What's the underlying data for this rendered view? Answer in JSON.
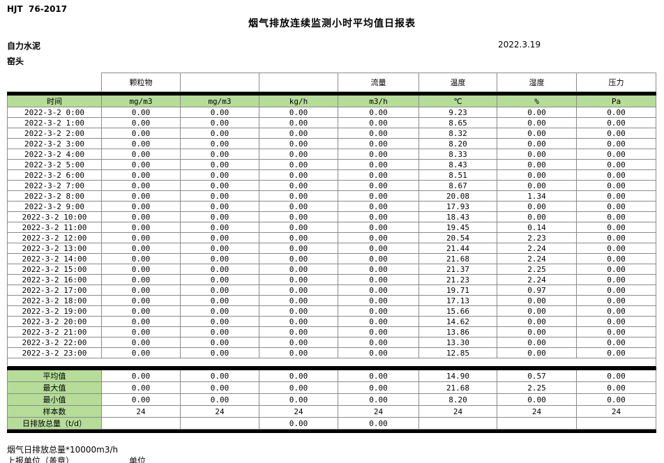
{
  "meta": {
    "standard_code": "HJT  76-2017",
    "title": "烟气排放连续监测小时平均值日报表",
    "company": "自力水泥",
    "location": "窑头",
    "report_date": "2022.3.19"
  },
  "colors": {
    "header_green": "#b5dd98",
    "bar_black": "#000000",
    "border_gray": "#8a8a8a"
  },
  "table": {
    "group_headers": [
      "",
      "颗粒物",
      "",
      "",
      "流量",
      "温度",
      "湿度",
      "压力"
    ],
    "unit_headers": [
      "时间",
      "mg/m3",
      "mg/m3",
      "kg/h",
      "m3/h",
      "℃",
      "%",
      "Pa"
    ],
    "rows": [
      {
        "time": "2022-3-2 0:00",
        "values": [
          "0.00",
          "0.00",
          "0.00",
          "0.00",
          "9.23",
          "0.00",
          "0.00"
        ]
      },
      {
        "time": "2022-3-2 1:00",
        "values": [
          "0.00",
          "0.00",
          "0.00",
          "0.00",
          "8.65",
          "0.00",
          "0.00"
        ]
      },
      {
        "time": "2022-3-2 2:00",
        "values": [
          "0.00",
          "0.00",
          "0.00",
          "0.00",
          "8.32",
          "0.00",
          "0.00"
        ]
      },
      {
        "time": "2022-3-2 3:00",
        "values": [
          "0.00",
          "0.00",
          "0.00",
          "0.00",
          "8.20",
          "0.00",
          "0.00"
        ]
      },
      {
        "time": "2022-3-2 4:00",
        "values": [
          "0.00",
          "0.00",
          "0.00",
          "0.00",
          "8.33",
          "0.00",
          "0.00"
        ]
      },
      {
        "time": "2022-3-2 5:00",
        "values": [
          "0.00",
          "0.00",
          "0.00",
          "0.00",
          "8.43",
          "0.00",
          "0.00"
        ]
      },
      {
        "time": "2022-3-2 6:00",
        "values": [
          "0.00",
          "0.00",
          "0.00",
          "0.00",
          "8.51",
          "0.00",
          "0.00"
        ]
      },
      {
        "time": "2022-3-2 7:00",
        "values": [
          "0.00",
          "0.00",
          "0.00",
          "0.00",
          "8.67",
          "0.00",
          "0.00"
        ]
      },
      {
        "time": "2022-3-2 8:00",
        "values": [
          "0.00",
          "0.00",
          "0.00",
          "0.00",
          "20.08",
          "1.34",
          "0.00"
        ]
      },
      {
        "time": "2022-3-2 9:00",
        "values": [
          "0.00",
          "0.00",
          "0.00",
          "0.00",
          "17.93",
          "0.00",
          "0.00"
        ]
      },
      {
        "time": "2022-3-2 10:00",
        "values": [
          "0.00",
          "0.00",
          "0.00",
          "0.00",
          "18.43",
          "0.00",
          "0.00"
        ]
      },
      {
        "time": "2022-3-2 11:00",
        "values": [
          "0.00",
          "0.00",
          "0.00",
          "0.00",
          "19.45",
          "0.14",
          "0.00"
        ]
      },
      {
        "time": "2022-3-2 12:00",
        "values": [
          "0.00",
          "0.00",
          "0.00",
          "0.00",
          "20.54",
          "2.23",
          "0.00"
        ]
      },
      {
        "time": "2022-3-2 13:00",
        "values": [
          "0.00",
          "0.00",
          "0.00",
          "0.00",
          "21.44",
          "2.24",
          "0.00"
        ]
      },
      {
        "time": "2022-3-2 14:00",
        "values": [
          "0.00",
          "0.00",
          "0.00",
          "0.00",
          "21.68",
          "2.24",
          "0.00"
        ]
      },
      {
        "time": "2022-3-2 15:00",
        "values": [
          "0.00",
          "0.00",
          "0.00",
          "0.00",
          "21.37",
          "2.25",
          "0.00"
        ]
      },
      {
        "time": "2022-3-2 16:00",
        "values": [
          "0.00",
          "0.00",
          "0.00",
          "0.00",
          "21.23",
          "2.24",
          "0.00"
        ]
      },
      {
        "time": "2022-3-2 17:00",
        "values": [
          "0.00",
          "0.00",
          "0.00",
          "0.00",
          "19.71",
          "0.97",
          "0.00"
        ]
      },
      {
        "time": "2022-3-2 18:00",
        "values": [
          "0.00",
          "0.00",
          "0.00",
          "0.00",
          "17.13",
          "0.00",
          "0.00"
        ]
      },
      {
        "time": "2022-3-2 19:00",
        "values": [
          "0.00",
          "0.00",
          "0.00",
          "0.00",
          "15.66",
          "0.00",
          "0.00"
        ]
      },
      {
        "time": "2022-3-2 20:00",
        "values": [
          "0.00",
          "0.00",
          "0.00",
          "0.00",
          "14.62",
          "0.00",
          "0.00"
        ]
      },
      {
        "time": "2022-3-2 21:00",
        "values": [
          "0.00",
          "0.00",
          "0.00",
          "0.00",
          "13.86",
          "0.00",
          "0.00"
        ]
      },
      {
        "time": "2022-3-2 22:00",
        "values": [
          "0.00",
          "0.00",
          "0.00",
          "0.00",
          "13.30",
          "0.00",
          "0.00"
        ]
      },
      {
        "time": "2022-3-2 23:00",
        "values": [
          "0.00",
          "0.00",
          "0.00",
          "0.00",
          "12.85",
          "0.00",
          "0.00"
        ]
      }
    ],
    "summary": [
      {
        "label": "平均值",
        "values": [
          "0.00",
          "0.00",
          "0.00",
          "0.00",
          "14.90",
          "0.57",
          "0.00"
        ]
      },
      {
        "label": "最大值",
        "values": [
          "0.00",
          "0.00",
          "0.00",
          "0.00",
          "21.68",
          "2.25",
          "0.00"
        ]
      },
      {
        "label": "最小值",
        "values": [
          "0.00",
          "0.00",
          "0.00",
          "0.00",
          "8.20",
          "0.00",
          "0.00"
        ]
      },
      {
        "label": "样本数",
        "values": [
          "24",
          "24",
          "24",
          "24",
          "24",
          "24",
          "24"
        ]
      },
      {
        "label": "日排放总量（t/d）",
        "values": [
          "",
          "",
          "0.00",
          "0.00",
          "",
          "",
          ""
        ]
      }
    ]
  },
  "footer": {
    "note": "烟气日排放总量*10000m3/h",
    "report_unit_label": "上报单位（盖章）",
    "unit_label": "单位"
  }
}
